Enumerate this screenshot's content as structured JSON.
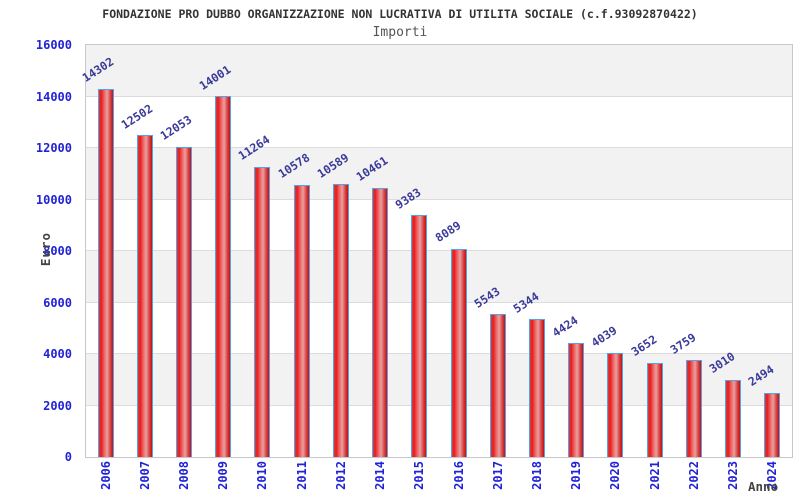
{
  "header": {
    "title": "FONDAZIONE PRO DUBBO ORGANIZZAZIONE NON LUCRATIVA DI UTILITA SOCIALE (c.f.93092870422)",
    "subtitle": "Importi"
  },
  "chart_data": {
    "type": "bar",
    "title": "Importi",
    "xlabel": "Anno",
    "ylabel": "Euro",
    "categories": [
      "2006",
      "2007",
      "2008",
      "2009",
      "2010",
      "2011",
      "2012",
      "2014",
      "2015",
      "2016",
      "2017",
      "2018",
      "2019",
      "2020",
      "2021",
      "2022",
      "2023",
      "2024"
    ],
    "values": [
      14302,
      12502,
      12053,
      14001,
      11264,
      10578,
      10589,
      10461,
      9383,
      8089,
      5543,
      5344,
      4424,
      4039,
      3652,
      3759,
      3010,
      2494
    ],
    "ylim": [
      0,
      16000
    ],
    "yticks": [
      0,
      2000,
      4000,
      6000,
      8000,
      10000,
      12000,
      14000,
      16000
    ],
    "grid": "horizontal-bands-alternating",
    "legend": "none",
    "colors": {
      "bar_fill": "#e01818",
      "bar_fill_highlight": "#e8a0a0",
      "bar_border": "#55a2e8",
      "axis_tick_text": "#2222d6",
      "value_label_text": "#3a3a99",
      "title_text": "#333333",
      "subtitle_text": "#555555",
      "axis_name_text": "#444444",
      "band_gray": "#f2f2f2",
      "gridline": "#dcdcdc",
      "plot_border": "#c8c8c8"
    }
  }
}
